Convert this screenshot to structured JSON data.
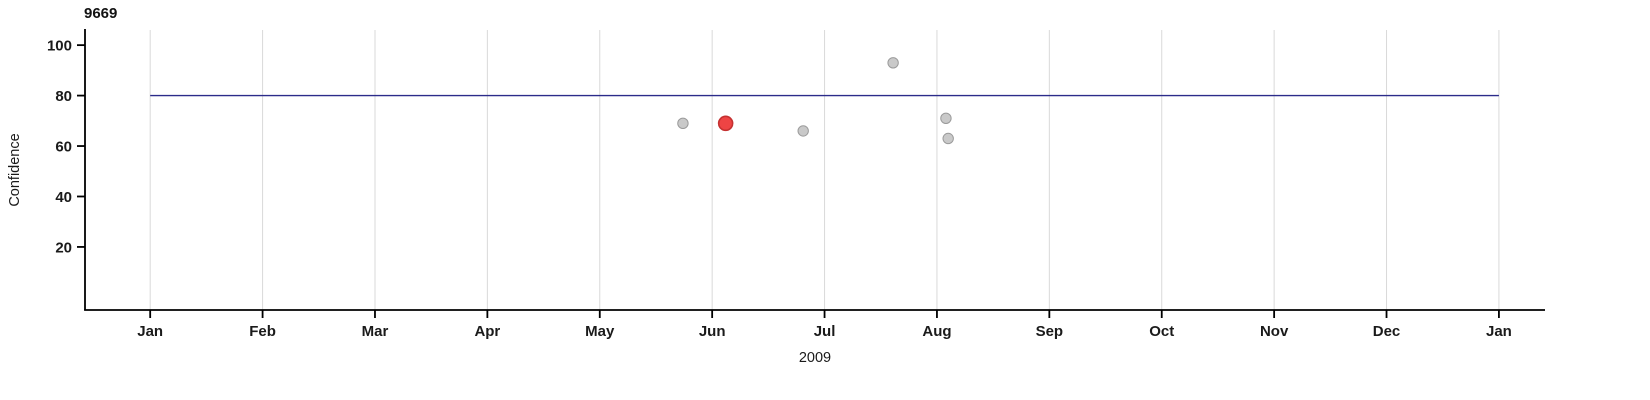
{
  "chart_data": {
    "type": "scatter",
    "title": "9669",
    "xlabel": "2009",
    "ylabel": "Confidence",
    "x_tick_labels": [
      "Jan",
      "Feb",
      "Mar",
      "Apr",
      "May",
      "Jun",
      "Jul",
      "Aug",
      "Sep",
      "Oct",
      "Nov",
      "Dec",
      "Jan"
    ],
    "x_range": [
      -0.58,
      12.41
    ],
    "y_ticks": [
      100,
      80,
      60,
      40,
      20
    ],
    "y_range": [
      -5,
      106
    ],
    "grid": "vertical-monthly",
    "legend": "none",
    "threshold_line": {
      "y": 80
    },
    "points": [
      {
        "x": 4.74,
        "y": 69,
        "series": "normal"
      },
      {
        "x": 5.12,
        "y": 69,
        "series": "highlight"
      },
      {
        "x": 5.81,
        "y": 66,
        "series": "normal"
      },
      {
        "x": 6.61,
        "y": 93,
        "series": "normal"
      },
      {
        "x": 7.08,
        "y": 71,
        "series": "normal"
      },
      {
        "x": 7.1,
        "y": 63,
        "series": "normal"
      }
    ],
    "colors": {
      "grid": "#d9d9d9",
      "axis": "#000000",
      "tick_label": "#1a1a1a",
      "threshold": "#2b2b8a",
      "point_fill": "#c9c9c9",
      "point_stroke": "#9b9b9b",
      "highlight_fill": "#ee4444",
      "highlight_stroke": "#c43131"
    }
  }
}
